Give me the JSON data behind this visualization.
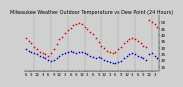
{
  "title": "Milwaukee Weather Outdoor Temperature vs Dew Point (24 Hours)",
  "title_fontsize": 3.5,
  "background_color": "#d0d0d0",
  "plot_bg_color": "#d0d0d0",
  "temp_color": "#dd0000",
  "dew_color": "#0000cc",
  "ylim": [
    12,
    56
  ],
  "yticks": [
    15,
    20,
    25,
    30,
    35,
    40,
    45,
    50
  ],
  "ytick_fontsize": 3.0,
  "xtick_fontsize": 2.8,
  "xtick_labels": [
    "6",
    "",
    "9",
    "",
    "12",
    "",
    "3",
    "",
    "6",
    "",
    "9",
    "",
    "12",
    "",
    "3",
    "",
    "6",
    "",
    "9",
    "",
    "12",
    "",
    "3",
    "",
    "6",
    "",
    "9",
    "",
    "12",
    "",
    "3",
    "",
    "6",
    "",
    "9",
    "",
    "12",
    "",
    "3",
    "",
    "6",
    "",
    "9",
    "",
    "12",
    "",
    "3"
  ],
  "temp_values": [
    38,
    36,
    34,
    31,
    29,
    27,
    26,
    25,
    24,
    26,
    29,
    33,
    37,
    39,
    42,
    44,
    46,
    48,
    49,
    50,
    49,
    47,
    45,
    43,
    41,
    38,
    35,
    32,
    30,
    28,
    27,
    26,
    27,
    29,
    31,
    34,
    36,
    37,
    38,
    37,
    36,
    34,
    32,
    31,
    52,
    51,
    49,
    47
  ],
  "dew_values": [
    29,
    28,
    27,
    26,
    25,
    24,
    23,
    22,
    21,
    20,
    21,
    22,
    24,
    25,
    26,
    27,
    28,
    27,
    26,
    27,
    27,
    26,
    25,
    24,
    23,
    22,
    23,
    22,
    21,
    20,
    19,
    18,
    18,
    19,
    20,
    22,
    24,
    25,
    26,
    25,
    24,
    23,
    22,
    21,
    25,
    26,
    24,
    22
  ],
  "vline_positions": [
    3,
    9,
    15,
    21,
    27,
    33,
    39,
    45
  ],
  "marker_size": 1.5
}
